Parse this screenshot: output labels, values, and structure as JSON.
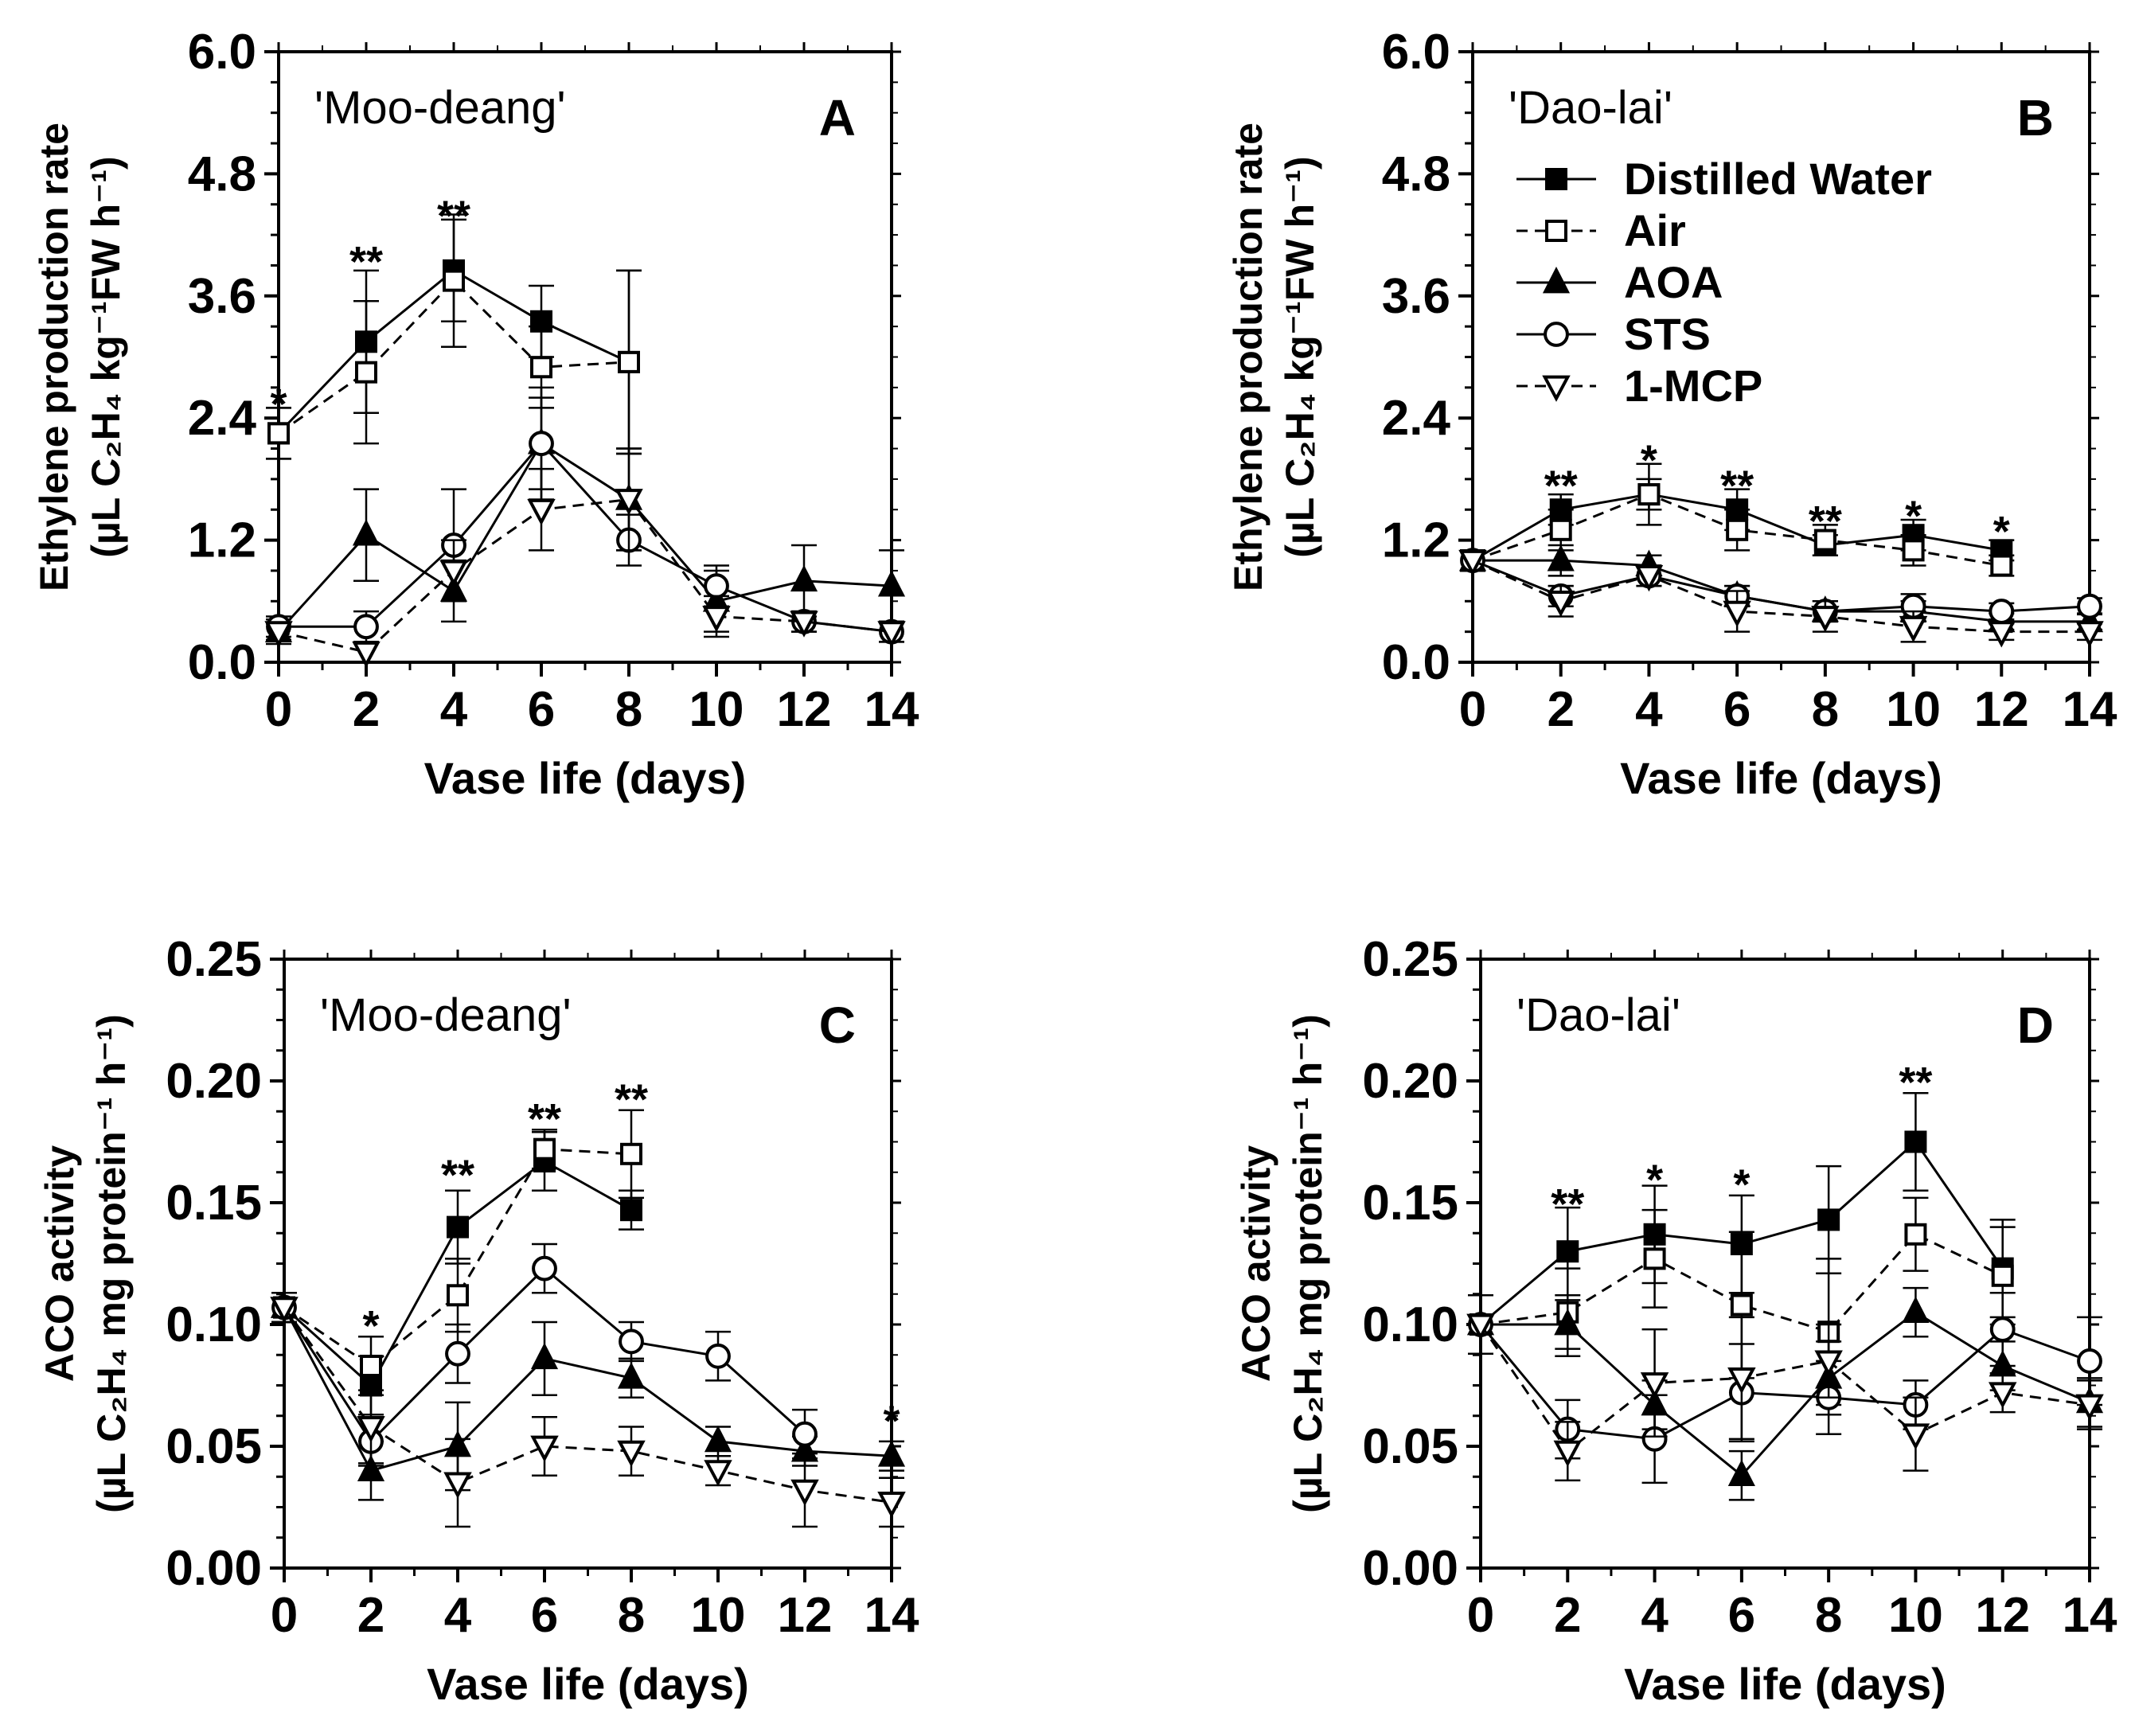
{
  "figure": {
    "legend": [
      {
        "name": "Distilled Water",
        "marker": "square-filled",
        "dash": "solid"
      },
      {
        "name": "Air",
        "marker": "square-open",
        "dash": "dashed"
      },
      {
        "name": "AOA",
        "marker": "triangle-filled",
        "dash": "solid"
      },
      {
        "name": "STS",
        "marker": "circle-open",
        "dash": "solid"
      },
      {
        "name": "1-MCP",
        "marker": "triangle-down-open",
        "dash": "dashed"
      }
    ]
  },
  "chart_data": [
    {
      "panel": "A",
      "type": "line",
      "title": "'Moo-deang'",
      "xlabel": "Vase life (days)",
      "ylabel_line1": "Ethylene production rate",
      "ylabel_line2": "(µL C₂H₄ kg⁻¹FW h⁻¹)",
      "xlim": [
        0,
        14
      ],
      "ylim": [
        0,
        6
      ],
      "xticks": [
        0,
        2,
        4,
        6,
        8,
        10,
        12,
        14
      ],
      "yticks": [
        0,
        1.2,
        2.4,
        3.6,
        4.8,
        6.0
      ],
      "ytick_labels": [
        "0.0",
        "1.2",
        "2.4",
        "3.6",
        "4.8",
        "6.0"
      ],
      "legend_shown": false,
      "series": [
        {
          "name": "Distilled Water",
          "x": [
            0,
            2,
            4,
            6,
            8
          ],
          "values": [
            2.25,
            3.15,
            3.85,
            3.35,
            2.95
          ],
          "errors": [
            0.25,
            0.7,
            0.5,
            0.35,
            0.9
          ]
        },
        {
          "name": "Air",
          "x": [
            0,
            2,
            4,
            6,
            8
          ],
          "values": [
            2.25,
            2.85,
            3.75,
            2.9,
            2.95
          ],
          "errors": [
            0.25,
            0.7,
            0.65,
            0.4,
            0.9
          ]
        },
        {
          "name": "AOA",
          "x": [
            0,
            2,
            4,
            6,
            8,
            10,
            12,
            14
          ],
          "values": [
            0.3,
            1.25,
            0.7,
            2.15,
            1.6,
            0.6,
            0.8,
            0.75
          ],
          "errors": [
            0.12,
            0.45,
            0.3,
            0.55,
            0.5,
            0.3,
            0.35,
            0.35
          ]
        },
        {
          "name": "STS",
          "x": [
            0,
            2,
            4,
            6,
            8,
            10,
            12,
            14
          ],
          "values": [
            0.35,
            0.35,
            1.15,
            2.15,
            1.2,
            0.75,
            0.4,
            0.3
          ],
          "errors": [
            0.1,
            0.15,
            0.55,
            0.45,
            0.25,
            0.2,
            0.1,
            0.1
          ]
        },
        {
          "name": "1-MCP",
          "x": [
            0,
            2,
            4,
            6,
            8,
            10,
            12,
            14
          ],
          "values": [
            0.3,
            0.1,
            0.9,
            1.5,
            1.6,
            0.45,
            0.4,
            0.3
          ],
          "errors": [
            0.08,
            0.1,
            0.3,
            0.4,
            0.5,
            0.2,
            0.1,
            0.1
          ]
        }
      ],
      "annotations": [
        {
          "x": 0,
          "y": 2.55,
          "text": "*"
        },
        {
          "x": 2,
          "y": 3.95,
          "text": "**"
        },
        {
          "x": 4,
          "y": 4.4,
          "text": "**"
        }
      ]
    },
    {
      "panel": "B",
      "type": "line",
      "title": "'Dao-lai'",
      "xlabel": "Vase life (days)",
      "ylabel_line1": "Ethylene production rate",
      "ylabel_line2": "(µL C₂H₄ kg⁻¹FW h⁻¹)",
      "xlim": [
        0,
        14
      ],
      "ylim": [
        0,
        6
      ],
      "xticks": [
        0,
        2,
        4,
        6,
        8,
        10,
        12,
        14
      ],
      "yticks": [
        0,
        1.2,
        2.4,
        3.6,
        4.8,
        6.0
      ],
      "ytick_labels": [
        "0.0",
        "1.2",
        "2.4",
        "3.6",
        "4.8",
        "6.0"
      ],
      "legend_shown": true,
      "series": [
        {
          "name": "Distilled Water",
          "x": [
            0,
            2,
            4,
            6,
            8,
            10,
            12
          ],
          "values": [
            1.0,
            1.5,
            1.65,
            1.5,
            1.15,
            1.25,
            1.1
          ],
          "errors": [
            0.1,
            0.15,
            0.15,
            0.2,
            0.1,
            0.15,
            0.1
          ]
        },
        {
          "name": "Air",
          "x": [
            0,
            2,
            4,
            6,
            8,
            10,
            12
          ],
          "values": [
            1.0,
            1.3,
            1.65,
            1.3,
            1.2,
            1.1,
            0.95
          ],
          "errors": [
            0.1,
            0.2,
            0.3,
            0.2,
            0.15,
            0.15,
            0.1
          ]
        },
        {
          "name": "AOA",
          "x": [
            0,
            2,
            4,
            6,
            8,
            10,
            12,
            14
          ],
          "values": [
            1.0,
            1.0,
            0.95,
            0.65,
            0.5,
            0.5,
            0.4,
            0.4
          ],
          "errors": [
            0.1,
            0.15,
            0.1,
            0.1,
            0.1,
            0.1,
            0.08,
            0.08
          ]
        },
        {
          "name": "STS",
          "x": [
            0,
            2,
            4,
            6,
            8,
            10,
            12,
            14
          ],
          "values": [
            1.0,
            0.65,
            0.85,
            0.65,
            0.5,
            0.55,
            0.5,
            0.55
          ],
          "errors": [
            0.1,
            0.1,
            0.1,
            0.1,
            0.1,
            0.12,
            0.08,
            0.08
          ]
        },
        {
          "name": "1-MCP",
          "x": [
            0,
            2,
            4,
            6,
            8,
            10,
            12,
            14
          ],
          "values": [
            1.0,
            0.6,
            0.85,
            0.5,
            0.45,
            0.35,
            0.3,
            0.3
          ],
          "errors": [
            0.1,
            0.15,
            0.1,
            0.2,
            0.15,
            0.15,
            0.08,
            0.08
          ]
        }
      ],
      "annotations": [
        {
          "x": 2,
          "y": 1.75,
          "text": "**"
        },
        {
          "x": 4,
          "y": 2.0,
          "text": "*"
        },
        {
          "x": 6,
          "y": 1.75,
          "text": "**"
        },
        {
          "x": 8,
          "y": 1.4,
          "text": "**"
        },
        {
          "x": 10,
          "y": 1.45,
          "text": "*"
        },
        {
          "x": 12,
          "y": 1.3,
          "text": "*"
        }
      ]
    },
    {
      "panel": "C",
      "type": "line",
      "title": "'Moo-deang'",
      "xlabel": "Vase life (days)",
      "ylabel_line1": "ACO activity",
      "ylabel_line2": "(µL C₂H₄ mg protein⁻¹ h⁻¹)",
      "xlim": [
        0,
        14
      ],
      "ylim": [
        0,
        0.25
      ],
      "xticks": [
        0,
        2,
        4,
        6,
        8,
        10,
        12,
        14
      ],
      "yticks": [
        0,
        0.05,
        0.1,
        0.15,
        0.2,
        0.25
      ],
      "ytick_labels": [
        "0.00",
        "0.05",
        "0.10",
        "0.15",
        "0.20",
        "0.25"
      ],
      "legend_shown": false,
      "series": [
        {
          "name": "Distilled Water",
          "x": [
            0,
            2,
            4,
            6,
            8
          ],
          "values": [
            0.107,
            0.075,
            0.14,
            0.167,
            0.147
          ],
          "errors": [
            0.006,
            0.012,
            0.015,
            0.012,
            0.008
          ]
        },
        {
          "name": "Air",
          "x": [
            0,
            2,
            4,
            6,
            8
          ],
          "values": [
            0.107,
            0.083,
            0.112,
            0.172,
            0.17
          ],
          "errors": [
            0.006,
            0.012,
            0.015,
            0.008,
            0.018
          ]
        },
        {
          "name": "AOA",
          "x": [
            0,
            2,
            4,
            6,
            8,
            10,
            12,
            14
          ],
          "values": [
            0.107,
            0.04,
            0.05,
            0.086,
            0.078,
            0.052,
            0.048,
            0.046
          ],
          "errors": [
            0.006,
            0.012,
            0.018,
            0.015,
            0.008,
            0.006,
            0.006,
            0.006
          ]
        },
        {
          "name": "STS",
          "x": [
            0,
            2,
            4,
            6,
            8,
            10,
            12
          ],
          "values": [
            0.107,
            0.052,
            0.088,
            0.123,
            0.093,
            0.087,
            0.055
          ],
          "errors": [
            0.006,
            0.01,
            0.012,
            0.01,
            0.008,
            0.01,
            0.01
          ]
        },
        {
          "name": "1-MCP",
          "x": [
            0,
            2,
            4,
            6,
            8,
            10,
            12,
            14
          ],
          "values": [
            0.107,
            0.058,
            0.035,
            0.05,
            0.048,
            0.04,
            0.032,
            0.027
          ],
          "errors": [
            0.006,
            0.015,
            0.018,
            0.012,
            0.01,
            0.006,
            0.015,
            0.01
          ]
        }
      ],
      "annotations": [
        {
          "x": 2,
          "y": 0.1,
          "text": "*"
        },
        {
          "x": 4,
          "y": 0.162,
          "text": "**"
        },
        {
          "x": 6,
          "y": 0.185,
          "text": "**"
        },
        {
          "x": 8,
          "y": 0.193,
          "text": "**"
        },
        {
          "x": 14,
          "y": 0.061,
          "text": "*"
        }
      ]
    },
    {
      "panel": "D",
      "type": "line",
      "title": "'Dao-lai'",
      "xlabel": "Vase life (days)",
      "ylabel_line1": "ACO activity",
      "ylabel_line2": "(µL C₂H₄ mg protein⁻¹ h⁻¹)",
      "xlim": [
        0,
        14
      ],
      "ylim": [
        0,
        0.25
      ],
      "xticks": [
        0,
        2,
        4,
        6,
        8,
        10,
        12,
        14
      ],
      "yticks": [
        0,
        0.05,
        0.1,
        0.15,
        0.2,
        0.25
      ],
      "ytick_labels": [
        "0.00",
        "0.05",
        "0.10",
        "0.15",
        "0.20",
        "0.25"
      ],
      "legend_shown": false,
      "series": [
        {
          "name": "Distilled Water",
          "x": [
            0,
            2,
            4,
            6,
            8,
            10,
            12
          ],
          "values": [
            0.1,
            0.13,
            0.137,
            0.133,
            0.143,
            0.175,
            0.123
          ],
          "errors": [
            0.012,
            0.018,
            0.02,
            0.02,
            0.022,
            0.02,
            0.02
          ]
        },
        {
          "name": "Air",
          "x": [
            0,
            2,
            4,
            6,
            8,
            10,
            12
          ],
          "values": [
            0.1,
            0.105,
            0.127,
            0.108,
            0.097,
            0.137,
            0.12
          ],
          "errors": [
            0.012,
            0.018,
            0.02,
            0.03,
            0.03,
            0.015,
            0.02
          ]
        },
        {
          "name": "AOA",
          "x": [
            0,
            2,
            4,
            6,
            8,
            10,
            12,
            14
          ],
          "values": [
            0.1,
            0.1,
            0.067,
            0.038,
            0.078,
            0.105,
            0.083,
            0.068
          ],
          "errors": [
            0.012,
            0.01,
            0.01,
            0.01,
            0.015,
            0.01,
            0.01,
            0.01
          ]
        },
        {
          "name": "STS",
          "x": [
            0,
            2,
            4,
            6,
            8,
            10,
            12,
            14
          ],
          "values": [
            0.1,
            0.057,
            0.053,
            0.072,
            0.07,
            0.067,
            0.098,
            0.085
          ],
          "errors": [
            0.012,
            0.012,
            0.018,
            0.02,
            0.015,
            0.01,
            0.015,
            0.018
          ]
        },
        {
          "name": "1-MCP",
          "x": [
            0,
            2,
            4,
            6,
            8,
            10,
            12,
            14
          ],
          "values": [
            0.1,
            0.048,
            0.076,
            0.078,
            0.085,
            0.055,
            0.072,
            0.067
          ],
          "errors": [
            0.012,
            0.012,
            0.022,
            0.025,
            0.015,
            0.015,
            0.008,
            0.01
          ]
        }
      ],
      "annotations": [
        {
          "x": 2,
          "y": 0.15,
          "text": "**"
        },
        {
          "x": 4,
          "y": 0.16,
          "text": "*"
        },
        {
          "x": 6,
          "y": 0.158,
          "text": "*"
        },
        {
          "x": 10,
          "y": 0.2,
          "text": "**"
        }
      ]
    }
  ]
}
